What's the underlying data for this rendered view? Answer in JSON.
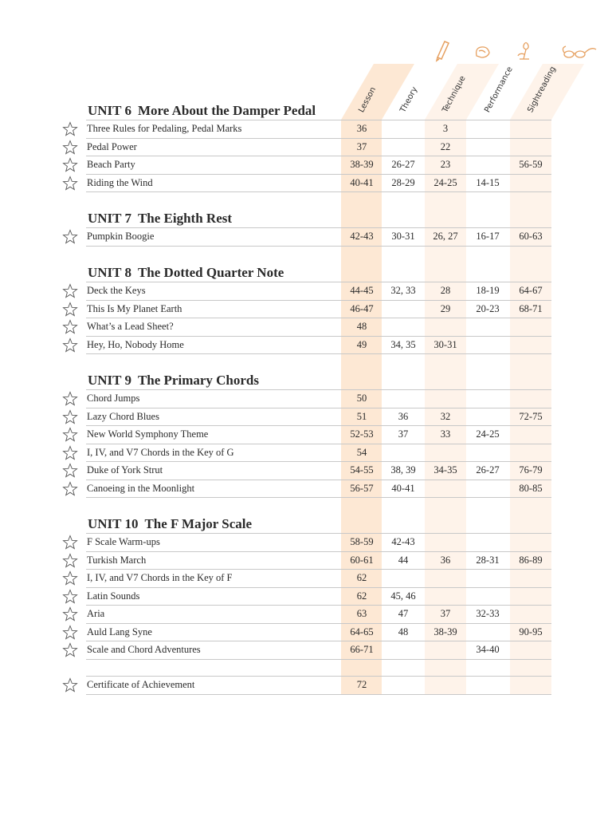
{
  "columns": [
    {
      "label": "Lesson",
      "icon": null
    },
    {
      "label": "Theory",
      "icon": null
    },
    {
      "label": "Technique",
      "icon": "pencil-icon"
    },
    {
      "label": "Performance",
      "icon": "hand-icon"
    },
    {
      "label": "Sightreading",
      "icon": "flower-icon"
    }
  ],
  "extra_icon": "glasses-icon",
  "colors": {
    "lesson_shade": "#fde8d4",
    "alt_shade": "#fef3ea",
    "icon": "#e6a060"
  },
  "units": [
    {
      "num": "UNIT 6",
      "title": "More About the Damper Pedal",
      "rows": [
        {
          "title": "Three Rules for Pedaling, Pedal Marks",
          "cells": [
            "36",
            "",
            "3",
            "",
            ""
          ]
        },
        {
          "title": "Pedal Power",
          "cells": [
            "37",
            "",
            "22",
            "",
            ""
          ]
        },
        {
          "title": "Beach Party",
          "cells": [
            "38-39",
            "26-27",
            "23",
            "",
            "56-59"
          ]
        },
        {
          "title": "Riding the Wind",
          "cells": [
            "40-41",
            "28-29",
            "24-25",
            "14-15",
            ""
          ]
        }
      ]
    },
    {
      "num": "UNIT 7",
      "title": "The Eighth Rest",
      "rows": [
        {
          "title": "Pumpkin Boogie",
          "cells": [
            "42-43",
            "30-31",
            "26, 27",
            "16-17",
            "60-63"
          ]
        }
      ]
    },
    {
      "num": "UNIT 8",
      "title": "The Dotted Quarter Note",
      "rows": [
        {
          "title": "Deck the Keys",
          "cells": [
            "44-45",
            "32, 33",
            "28",
            "18-19",
            "64-67"
          ]
        },
        {
          "title": "This Is My Planet Earth",
          "cells": [
            "46-47",
            "",
            "29",
            "20-23",
            "68-71"
          ]
        },
        {
          "title": "What’s a Lead Sheet?",
          "cells": [
            "48",
            "",
            "",
            "",
            ""
          ]
        },
        {
          "title": "Hey, Ho, Nobody Home",
          "cells": [
            "49",
            "34, 35",
            "30-31",
            "",
            ""
          ]
        }
      ]
    },
    {
      "num": "UNIT 9",
      "title": "The Primary Chords",
      "rows": [
        {
          "title": "Chord Jumps",
          "cells": [
            "50",
            "",
            "",
            "",
            ""
          ]
        },
        {
          "title": "Lazy Chord Blues",
          "cells": [
            "51",
            "36",
            "32",
            "",
            "72-75"
          ]
        },
        {
          "title": "New World Symphony Theme",
          "cells": [
            "52-53",
            "37",
            "33",
            "24-25",
            ""
          ]
        },
        {
          "title": "I, IV, and V7 Chords in the Key of G",
          "cells": [
            "54",
            "",
            "",
            "",
            ""
          ]
        },
        {
          "title": "Duke of York Strut",
          "cells": [
            "54-55",
            "38, 39",
            "34-35",
            "26-27",
            "76-79"
          ]
        },
        {
          "title": "Canoeing in the Moonlight",
          "cells": [
            "56-57",
            "40-41",
            "",
            "",
            "80-85"
          ]
        }
      ]
    },
    {
      "num": "UNIT 10",
      "title": "The F Major Scale",
      "rows": [
        {
          "title": "F Scale Warm-ups",
          "cells": [
            "58-59",
            "42-43",
            "",
            "",
            ""
          ]
        },
        {
          "title": "Turkish March",
          "cells": [
            "60-61",
            "44",
            "36",
            "28-31",
            "86-89"
          ]
        },
        {
          "title": "I, IV, and V7 Chords in the Key of F",
          "cells": [
            "62",
            "",
            "",
            "",
            ""
          ]
        },
        {
          "title": "Latin Sounds",
          "cells": [
            "62",
            "45, 46",
            "",
            "",
            ""
          ]
        },
        {
          "title": "Aria",
          "cells": [
            "63",
            "47",
            "37",
            "32-33",
            ""
          ]
        },
        {
          "title": "Auld Lang Syne",
          "cells": [
            "64-65",
            "48",
            "38-39",
            "",
            "90-95"
          ]
        },
        {
          "title": "Scale and Chord Adventures",
          "cells": [
            "66-71",
            "",
            "",
            "34-40",
            ""
          ]
        }
      ]
    },
    {
      "num": "",
      "title": "",
      "rows": [
        {
          "title": "Certificate of Achievement",
          "cells": [
            "72",
            "",
            "",
            "",
            ""
          ]
        }
      ]
    }
  ]
}
